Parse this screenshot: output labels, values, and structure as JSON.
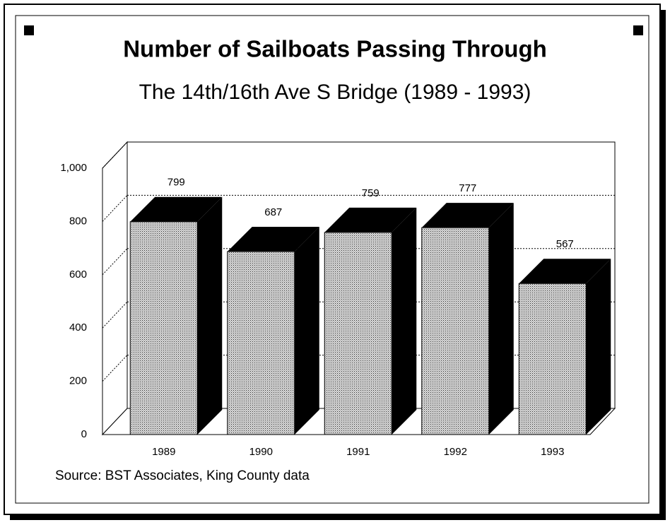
{
  "chart_data": {
    "type": "bar3d",
    "title": "Number of Sailboats Passing Through",
    "subtitle": "The 14th/16th Ave S Bridge (1989 - 1993)",
    "categories": [
      "1989",
      "1990",
      "1991",
      "1992",
      "1993"
    ],
    "values": [
      799,
      687,
      759,
      777,
      567
    ],
    "ylim": [
      0,
      1000
    ],
    "yticks": [
      0,
      200,
      400,
      600,
      800,
      {
        "value": 1000,
        "label": "1,000"
      }
    ],
    "grid": true,
    "source": "Source:  BST Associates, King County data"
  }
}
